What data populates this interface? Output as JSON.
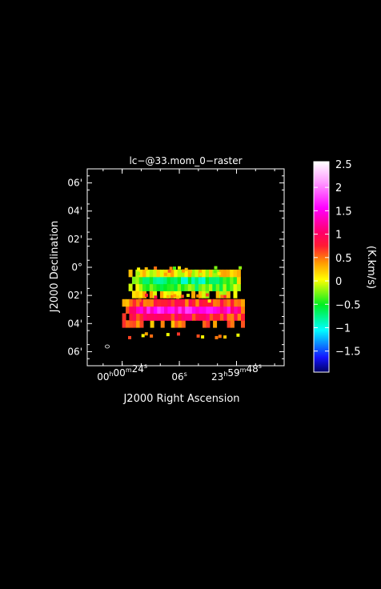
{
  "chart_data": {
    "type": "heatmap",
    "title": "lc−@33.mom_0−raster",
    "xlabel": "J2000 Right Ascension",
    "ylabel": "J2000 Declination",
    "x_ticks": [
      {
        "label_h": "00",
        "label_m": "00",
        "label_s": "24",
        "ra_hms": "00:00:24"
      },
      {
        "label_h": "",
        "label_m": "",
        "label_s": "06",
        "ra_hms": "00:00:06"
      },
      {
        "label_h": "23",
        "label_m": "59",
        "label_s": "48",
        "ra_hms": "23:59:48"
      }
    ],
    "y_ticks": [
      {
        "label": "06'",
        "dec_arcmin": 6
      },
      {
        "label": "04'",
        "dec_arcmin": 4
      },
      {
        "label": "02'",
        "dec_arcmin": 2
      },
      {
        "label": "0°",
        "dec_arcmin": 0
      },
      {
        "label": "02'",
        "dec_arcmin": -2
      },
      {
        "label": "04'",
        "dec_arcmin": -4
      },
      {
        "label": "06'",
        "dec_arcmin": -6
      }
    ],
    "xlim_ra_seconds_offset": [
      35,
      -27
    ],
    "ylim_dec_arcmin": [
      -7,
      7
    ],
    "colorbar": {
      "label": "(K.km/s)",
      "range": [
        -1.95,
        2.55
      ],
      "ticks": [
        "2.5",
        "2",
        "1.5",
        "1",
        "0.5",
        "0",
        "−0.5",
        "−1",
        "−1.5"
      ],
      "tick_values": [
        2.5,
        2,
        1.5,
        1,
        0.5,
        0,
        -0.5,
        -1,
        -1.5
      ],
      "colormap": "rainbow (navy → blue → cyan → green → yellow → orange → red → magenta → white)"
    },
    "regions": [
      {
        "name": "upper strip",
        "ra_offset_s": [
          22,
          -13
        ],
        "dec_arcmin": [
          -2.2,
          -0.5
        ],
        "edge_value": 0.1,
        "core_value": -1.0
      },
      {
        "name": "lower strip",
        "ra_offset_s": [
          24,
          -14
        ],
        "dec_arcmin": [
          -4.3,
          -2.4
        ],
        "edge_value": 0.4,
        "core_value": 1.6
      }
    ],
    "beam_marker": "small circle, lower-left",
    "grid": false
  }
}
